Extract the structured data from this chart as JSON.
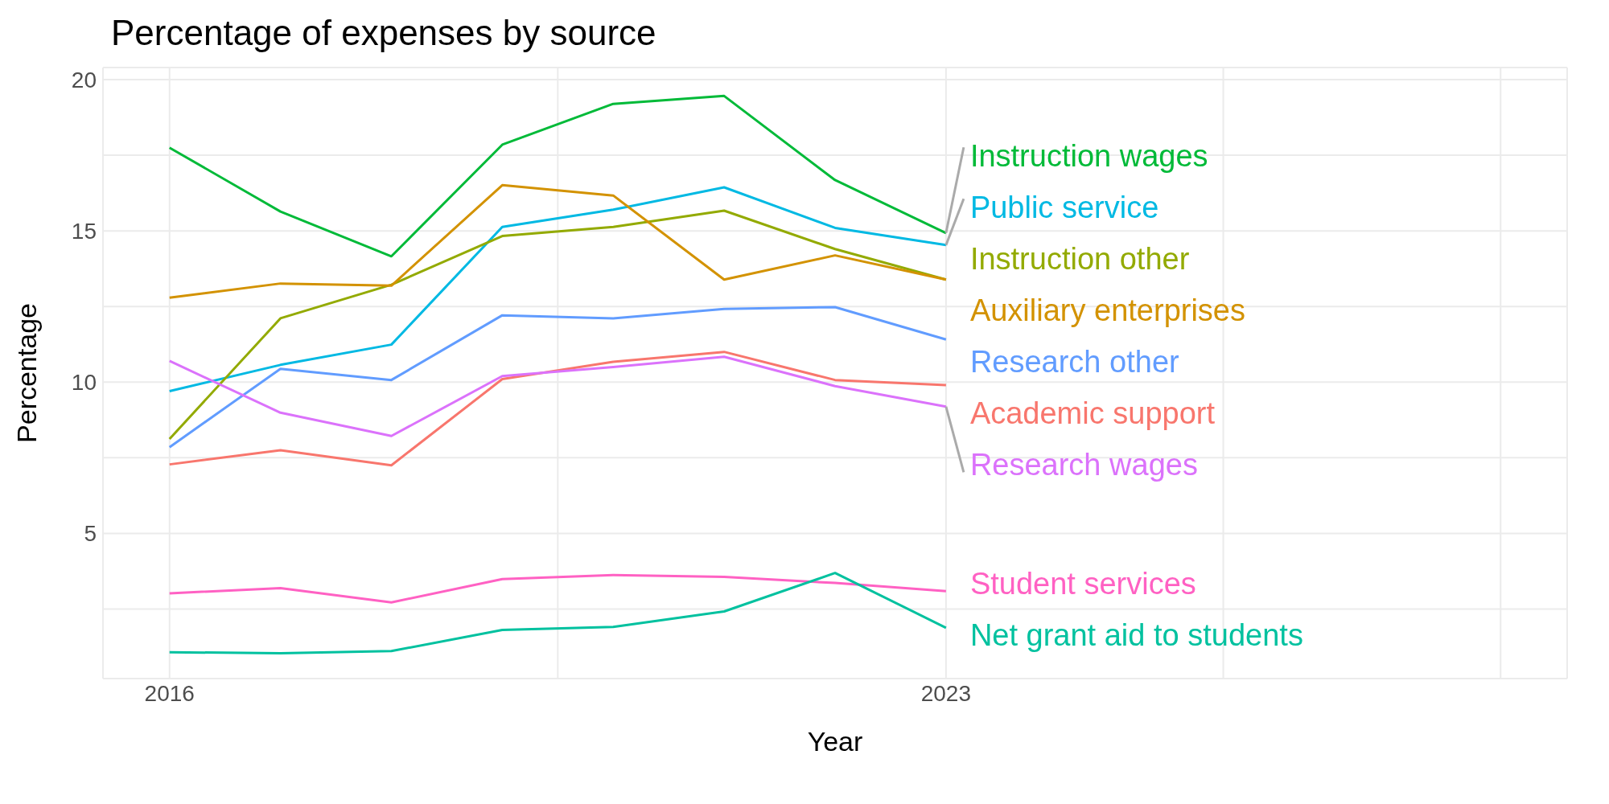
{
  "chart_data": {
    "type": "line",
    "title": "Percentage of expenses by source",
    "xlabel": "Year",
    "ylabel": "Percentage",
    "x": [
      2016,
      2017,
      2018,
      2019,
      2020,
      2021,
      2022,
      2023
    ],
    "series": [
      {
        "name": "Instruction wages",
        "color": "#00ba38",
        "values": [
          17.75,
          15.64,
          14.16,
          17.85,
          19.2,
          19.46,
          16.68,
          14.93
        ]
      },
      {
        "name": "Public service",
        "color": "#00b9e3",
        "values": [
          9.7,
          10.57,
          11.24,
          15.13,
          15.7,
          16.44,
          15.1,
          14.53
        ]
      },
      {
        "name": "Instruction other",
        "color": "#93aa00",
        "values": [
          8.12,
          12.11,
          13.22,
          14.83,
          15.13,
          15.67,
          14.4,
          13.39
        ]
      },
      {
        "name": "Auxiliary enterprises",
        "color": "#d39200",
        "values": [
          12.79,
          13.26,
          13.19,
          16.51,
          16.17,
          13.39,
          14.19,
          13.39
        ]
      },
      {
        "name": "Research other",
        "color": "#619cff",
        "values": [
          7.85,
          10.44,
          10.07,
          12.21,
          12.11,
          12.42,
          12.48,
          11.41
        ]
      },
      {
        "name": "Academic support",
        "color": "#f8766d",
        "values": [
          7.28,
          7.75,
          7.25,
          10.1,
          10.67,
          11.0,
          10.07,
          9.9
        ]
      },
      {
        "name": "Research wages",
        "color": "#db72fb",
        "values": [
          10.7,
          8.99,
          8.22,
          10.2,
          10.5,
          10.84,
          9.87,
          9.19
        ]
      },
      {
        "name": "Student services",
        "color": "#ff61c3",
        "values": [
          3.02,
          3.19,
          2.72,
          3.49,
          3.62,
          3.56,
          3.36,
          3.09
        ]
      },
      {
        "name": "Net grant aid to students",
        "color": "#00c19f",
        "values": [
          1.07,
          1.04,
          1.11,
          1.81,
          1.91,
          2.42,
          3.69,
          1.88
        ]
      }
    ],
    "xlim": [
      2015.4,
      2028.6
    ],
    "xticks": [
      2016,
      {
        "value": 2019.5,
        "label": null
      },
      2023,
      {
        "value": 2025.5,
        "label": null
      },
      {
        "value": 2028,
        "label": null
      }
    ],
    "ylim": [
      0.2,
      20.4
    ],
    "yticks": [
      {
        "value": 2.5,
        "label": null
      },
      5,
      {
        "value": 7.5,
        "label": null
      },
      10,
      {
        "value": 12.5,
        "label": null
      },
      15,
      {
        "value": 17.5,
        "label": null
      },
      20
    ],
    "grid": true,
    "legend": false,
    "marker": "none",
    "line_style": "solid"
  }
}
